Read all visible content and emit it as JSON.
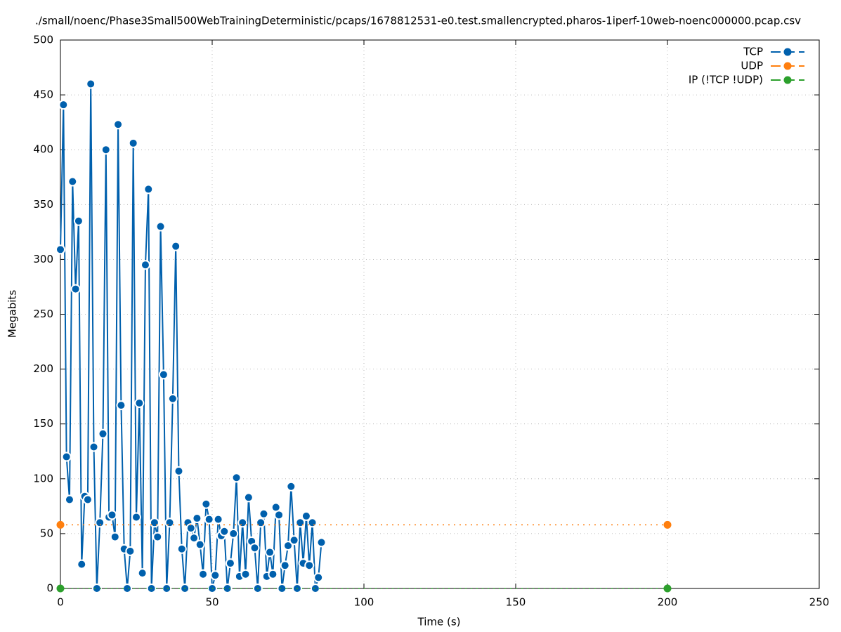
{
  "chart_data": {
    "type": "line",
    "title": "./small/noenc/Phase3Small500WebTrainingDeterministic/pcaps/1678812531-e0.test.smallencrypted.pharos-1iperf-10web-noenc000000.pcap.csv",
    "xlabel": "Time (s)",
    "ylabel": "Megabits",
    "xlim": [
      0,
      250
    ],
    "xticks": [
      0,
      50,
      100,
      150,
      200,
      250
    ],
    "ylim": [
      0,
      500
    ],
    "yticks": [
      0,
      50,
      100,
      150,
      200,
      250,
      300,
      350,
      400,
      450,
      500
    ],
    "grid": true,
    "legend": "upper right",
    "series": [
      {
        "name": "TCP",
        "color": "#0060ad",
        "x": [
          0,
          1,
          2,
          3,
          4,
          5,
          6,
          7,
          8,
          9,
          10,
          11,
          12,
          13,
          14,
          15,
          16,
          17,
          18,
          19,
          20,
          21,
          22,
          23,
          24,
          25,
          26,
          27,
          28,
          29,
          30,
          31,
          32,
          33,
          34,
          35,
          36,
          37,
          38,
          39,
          40,
          41,
          42,
          43,
          44,
          45,
          46,
          47,
          48,
          49,
          50,
          51,
          52,
          53,
          54,
          55,
          56,
          57,
          58,
          59,
          60,
          61,
          62,
          63,
          64,
          65,
          66,
          67,
          68,
          69,
          70,
          71,
          72,
          73,
          74,
          75,
          76,
          77,
          78,
          79,
          80,
          81,
          82,
          83,
          84,
          85,
          86
        ],
        "values": [
          309,
          441,
          120,
          81,
          371,
          273,
          335,
          22,
          84,
          81,
          460,
          129,
          0,
          60,
          141,
          400,
          65,
          67,
          47,
          423,
          167,
          36,
          0,
          34,
          406,
          65,
          169,
          14,
          295,
          364,
          0,
          60,
          47,
          330,
          195,
          0,
          60,
          173,
          312,
          107,
          36,
          0,
          60,
          55,
          46,
          64,
          40,
          13,
          77,
          63,
          0,
          12,
          63,
          48,
          52,
          0,
          23,
          50,
          101,
          11,
          60,
          13,
          83,
          43,
          37,
          0,
          60,
          68,
          11,
          33,
          13,
          74,
          67,
          0,
          21,
          39,
          93,
          44,
          0,
          60,
          23,
          66,
          21,
          60,
          0,
          10,
          42
        ]
      },
      {
        "name": "UDP",
        "color": "#ff7f0e",
        "x": [
          0,
          200
        ],
        "values": [
          58,
          58
        ]
      },
      {
        "name": "IP (!TCP  !UDP)",
        "color": "#2ca02c",
        "x": [
          0,
          200
        ],
        "values": [
          0,
          0
        ]
      }
    ]
  }
}
